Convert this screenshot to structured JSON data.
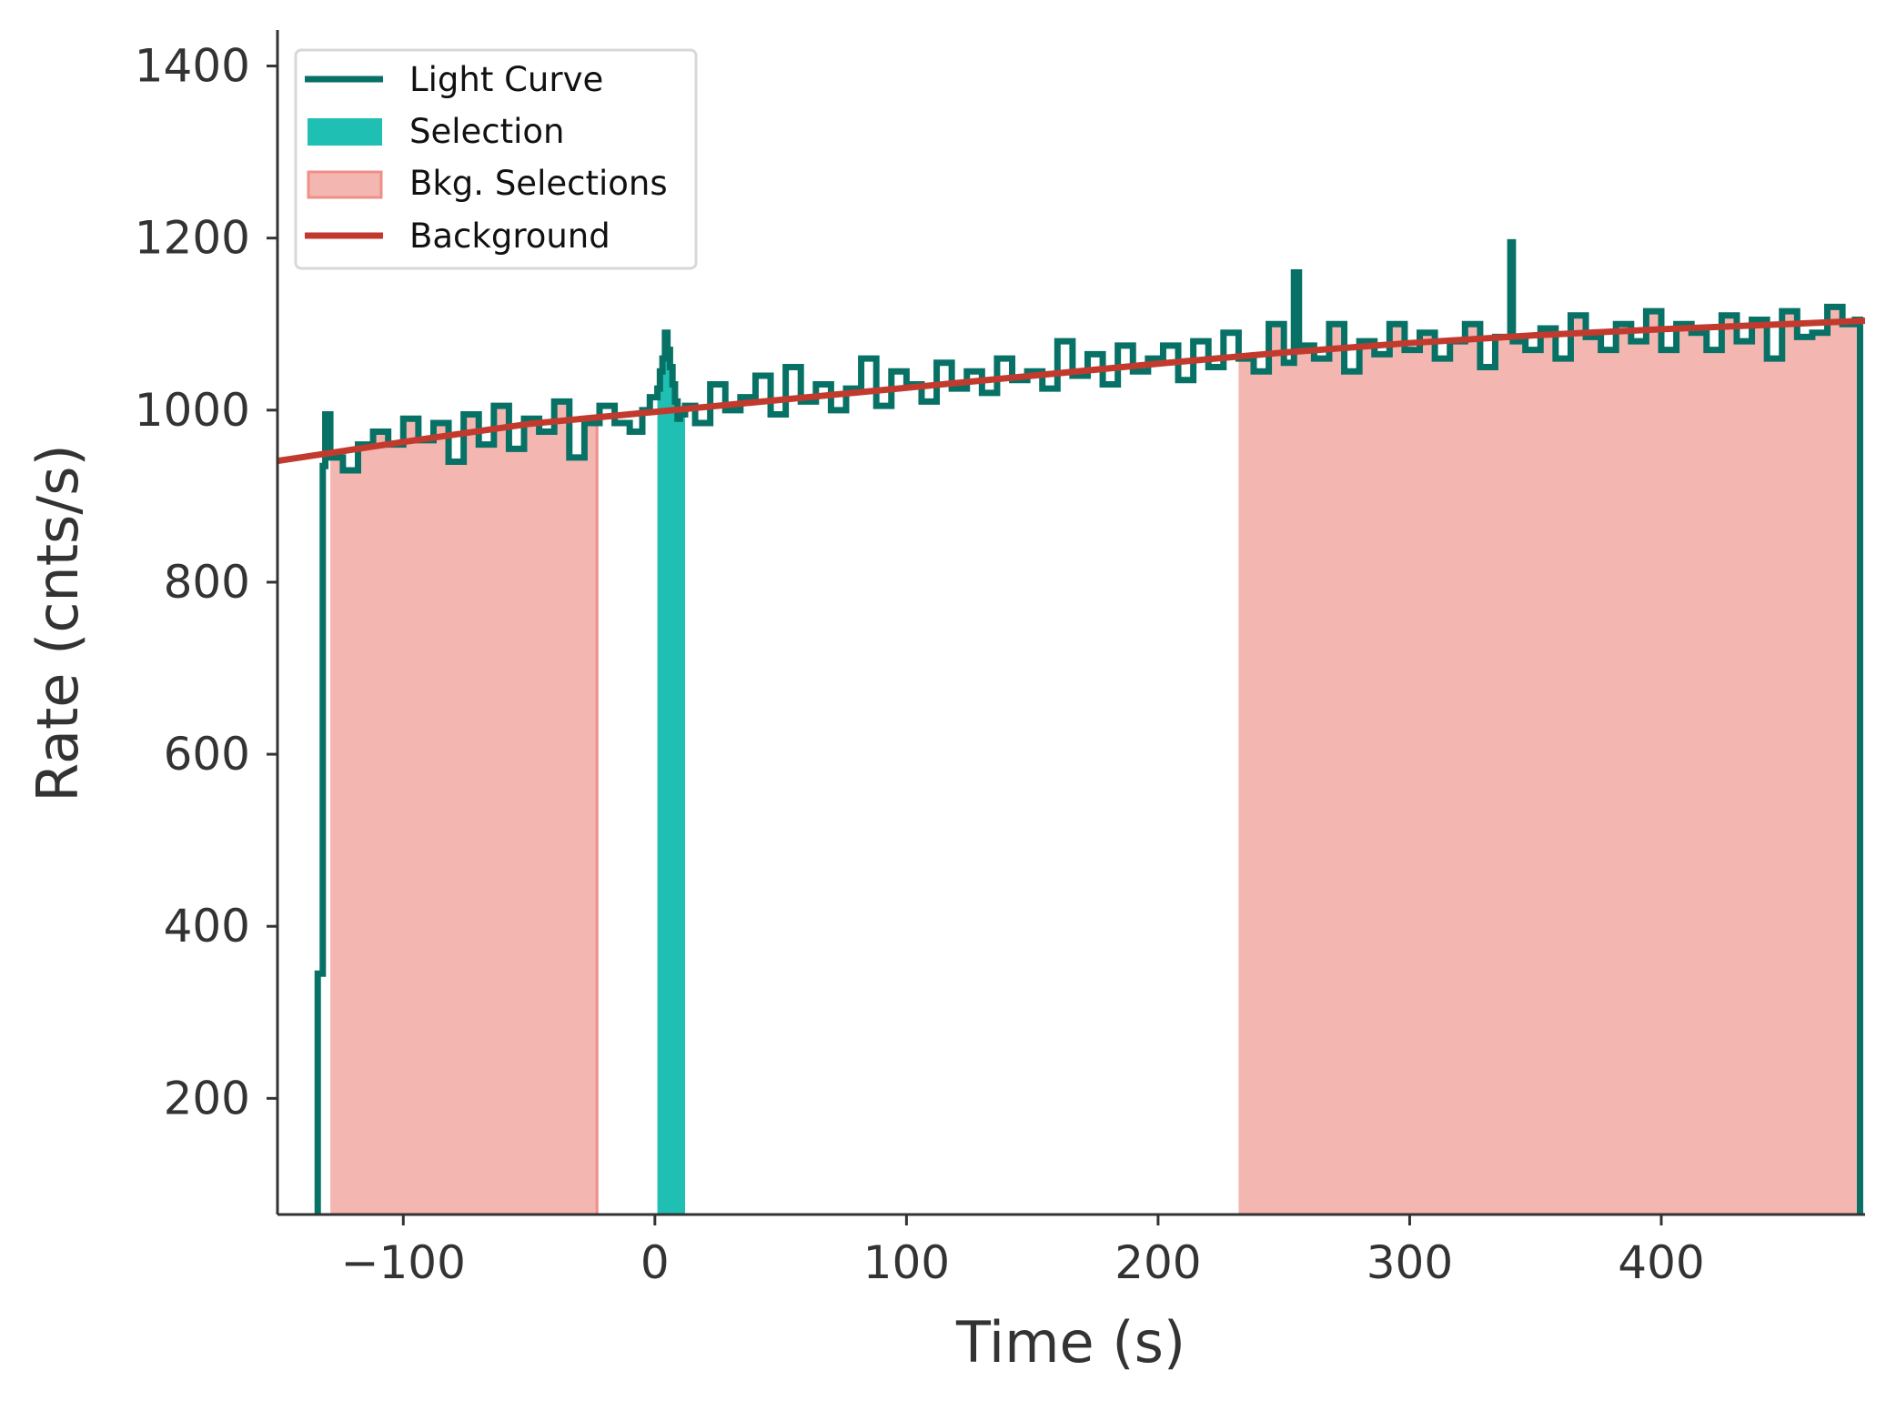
{
  "chart_data": {
    "type": "line",
    "title": "",
    "xlabel": "Time (s)",
    "ylabel": "Rate (cnts/s)",
    "xlim": [
      -150,
      481
    ],
    "ylim": [
      65,
      1445
    ],
    "xticks": [
      -100,
      0,
      100,
      200,
      300,
      400
    ],
    "xtick_labels": [
      "−100",
      "0",
      "100",
      "200",
      "300",
      "400"
    ],
    "yticks": [
      200,
      400,
      600,
      800,
      1000,
      1200,
      1400
    ],
    "ytick_labels": [
      "200",
      "400",
      "600",
      "800",
      "1000",
      "1200",
      "1400"
    ],
    "grid": false,
    "legend_position": "top-left",
    "colors": {
      "light_curve": "#077166",
      "selection": "#1fbfb4",
      "bkg_selection_fill": "#f4b6b1",
      "bkg_selection_edge": "#ef8f87",
      "background": "#c23a2e",
      "axis": "#333333"
    },
    "series": [
      {
        "name": "Light Curve",
        "kind": "step",
        "x": [
          -134,
          -132,
          -131,
          -129,
          -124,
          -118,
          -112,
          -106,
          -100,
          -94,
          -88,
          -82,
          -76,
          -70,
          -64,
          -58,
          -52,
          -46,
          -40,
          -34,
          -28,
          -22,
          -16,
          -10,
          -5,
          -2,
          1,
          2,
          3,
          4,
          5,
          6,
          7,
          8,
          9,
          10,
          12,
          16,
          22,
          28,
          34,
          40,
          46,
          52,
          58,
          64,
          70,
          76,
          82,
          88,
          94,
          100,
          106,
          112,
          118,
          124,
          130,
          136,
          142,
          148,
          154,
          160,
          166,
          172,
          178,
          184,
          190,
          196,
          202,
          208,
          214,
          220,
          226,
          232,
          238,
          244,
          250,
          254,
          256,
          262,
          268,
          274,
          280,
          286,
          292,
          298,
          304,
          310,
          316,
          322,
          328,
          334,
          340,
          341,
          346,
          352,
          358,
          364,
          370,
          376,
          382,
          388,
          394,
          400,
          406,
          412,
          418,
          424,
          430,
          436,
          442,
          448,
          454,
          460,
          466,
          472,
          477,
          479
        ],
        "y": [
          345,
          935,
          995,
          945,
          930,
          960,
          975,
          960,
          990,
          965,
          985,
          940,
          995,
          960,
          1005,
          955,
          990,
          975,
          1010,
          945,
          985,
          1005,
          985,
          975,
          1000,
          1015,
          1025,
          1045,
          1060,
          1090,
          1070,
          1050,
          1030,
          1010,
          990,
          995,
          1005,
          985,
          1030,
          1000,
          1015,
          1040,
          995,
          1050,
          1010,
          1030,
          1000,
          1025,
          1060,
          1005,
          1045,
          1030,
          1010,
          1055,
          1025,
          1045,
          1020,
          1060,
          1035,
          1045,
          1025,
          1080,
          1040,
          1065,
          1030,
          1075,
          1045,
          1060,
          1075,
          1035,
          1080,
          1050,
          1090,
          1060,
          1045,
          1100,
          1055,
          1160,
          1075,
          1060,
          1100,
          1045,
          1080,
          1065,
          1100,
          1070,
          1090,
          1060,
          1080,
          1100,
          1050,
          1085,
          1195,
          1080,
          1070,
          1095,
          1060,
          1110,
          1085,
          1070,
          1100,
          1080,
          1115,
          1070,
          1100,
          1090,
          1070,
          1110,
          1080,
          1105,
          1060,
          1115,
          1085,
          1090,
          1120,
          1100,
          1105,
          1104
        ]
      },
      {
        "name": "Background",
        "kind": "line",
        "x": [
          -150,
          -100,
          -50,
          0,
          50,
          100,
          150,
          200,
          250,
          300,
          350,
          400,
          450,
          481
        ],
        "y": [
          941,
          963,
          984,
          998,
          1012,
          1026,
          1040,
          1054,
          1067,
          1078,
          1087,
          1094,
          1100,
          1104
        ]
      }
    ],
    "selections": [
      {
        "name": "Selection",
        "x_start": 1,
        "x_end": 12
      }
    ],
    "bkg_selections": [
      {
        "name": "Bkg. Selections",
        "x_start": -129,
        "x_end": -23
      },
      {
        "name": "Bkg. Selections",
        "x_start": 232,
        "x_end": 479
      }
    ],
    "legend": {
      "entries": [
        "Light Curve",
        "Selection",
        "Bkg. Selections",
        "Background"
      ]
    }
  }
}
